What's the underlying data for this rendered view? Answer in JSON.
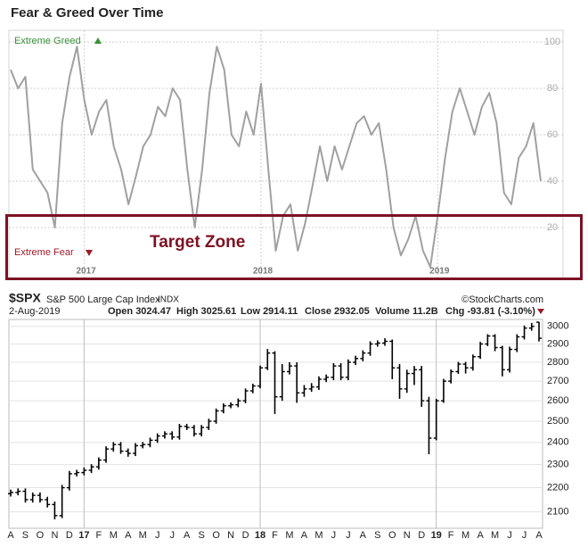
{
  "chart_data": [
    {
      "type": "line",
      "title": "Fear & Greed Over Time",
      "annotations": {
        "extreme_greed": "Extreme Greed",
        "extreme_fear": "Extreme Fear",
        "target_zone": "Target Zone"
      },
      "categories": [
        null,
        null,
        null,
        null,
        null,
        null,
        null,
        null,
        null,
        null,
        "2017",
        null,
        null,
        null,
        null,
        null,
        null,
        null,
        null,
        null,
        null,
        null,
        null,
        null,
        null,
        null,
        null,
        null,
        null,
        null,
        null,
        null,
        null,
        null,
        "2018",
        null,
        null,
        null,
        null,
        null,
        null,
        null,
        null,
        null,
        null,
        null,
        null,
        null,
        null,
        null,
        null,
        null,
        null,
        null,
        null,
        null,
        null,
        null,
        "2019",
        null,
        null,
        null,
        null,
        null,
        null,
        null,
        null,
        null,
        null,
        null,
        null,
        null,
        null
      ],
      "values": [
        88,
        80,
        85,
        45,
        40,
        35,
        20,
        65,
        85,
        98,
        75,
        60,
        70,
        75,
        55,
        45,
        30,
        42,
        55,
        60,
        72,
        68,
        80,
        75,
        45,
        20,
        45,
        78,
        98,
        88,
        60,
        55,
        70,
        60,
        82,
        45,
        10,
        25,
        30,
        10,
        22,
        38,
        55,
        40,
        55,
        45,
        55,
        65,
        68,
        60,
        65,
        45,
        20,
        8,
        15,
        25,
        10,
        3,
        25,
        50,
        70,
        80,
        70,
        60,
        72,
        78,
        65,
        35,
        30,
        50,
        55,
        65,
        40
      ],
      "color": "#a0a0a0",
      "ylim": [
        0,
        105
      ],
      "yticks": [
        20,
        40,
        60,
        80,
        100
      ],
      "grid": true
    },
    {
      "type": "ohlc",
      "symbol": "$SPX",
      "name": "S&P 500 Large Cap Index",
      "exchange": "INDX",
      "source": "©StockCharts.com",
      "date": "2-Aug-2019",
      "stats": [
        {
          "label": "Open",
          "value": "3024.47"
        },
        {
          "label": "High",
          "value": "3025.61"
        },
        {
          "label": "Low",
          "value": "2914.11"
        },
        {
          "label": "Close",
          "value": "2932.05"
        },
        {
          "label": "Volume",
          "value": "11.2B"
        },
        {
          "label": "Chg",
          "value": "-93.81 (-3.10%)"
        }
      ],
      "categories": [
        "A",
        null,
        "S",
        null,
        "O",
        null,
        "N",
        null,
        "D",
        null,
        "17",
        null,
        "F",
        null,
        "M",
        null,
        "A",
        null,
        "M",
        null,
        "J",
        null,
        "J",
        null,
        "A",
        null,
        "S",
        null,
        "O",
        null,
        "N",
        null,
        "D",
        null,
        "18",
        null,
        "F",
        null,
        "M",
        null,
        "A",
        null,
        "M",
        null,
        "J",
        null,
        "J",
        null,
        "A",
        null,
        "S",
        null,
        "O",
        null,
        "N",
        null,
        "D",
        null,
        "19",
        null,
        "F",
        null,
        "M",
        null,
        "A",
        null,
        "M",
        null,
        "J",
        null,
        "J",
        null,
        "A"
      ],
      "open": [
        2175,
        2180,
        2185,
        2150,
        2168,
        2150,
        2130,
        2085,
        2200,
        2260,
        2265,
        2275,
        2290,
        2320,
        2370,
        2390,
        2360,
        2350,
        2385,
        2390,
        2410,
        2430,
        2440,
        2425,
        2475,
        2470,
        2440,
        2470,
        2500,
        2550,
        2575,
        2580,
        2600,
        2650,
        2675,
        2770,
        2850,
        2620,
        2750,
        2780,
        2640,
        2660,
        2670,
        2710,
        2720,
        2780,
        2720,
        2800,
        2820,
        2850,
        2900,
        2905,
        2915,
        2770,
        2660,
        2740,
        2760,
        2600,
        2420,
        2600,
        2700,
        2750,
        2790,
        2770,
        2830,
        2900,
        2945,
        2880,
        2760,
        2870,
        2940,
        2990,
        3024
      ],
      "high": [
        2192,
        2197,
        2197,
        2180,
        2180,
        2162,
        2142,
        2212,
        2272,
        2277,
        2287,
        2302,
        2332,
        2382,
        2402,
        2402,
        2372,
        2397,
        2402,
        2422,
        2442,
        2452,
        2452,
        2487,
        2487,
        2482,
        2482,
        2512,
        2562,
        2587,
        2592,
        2612,
        2662,
        2687,
        2782,
        2872,
        2860,
        2790,
        2800,
        2800,
        2680,
        2690,
        2725,
        2735,
        2795,
        2795,
        2815,
        2835,
        2865,
        2915,
        2920,
        2932,
        2925,
        2790,
        2760,
        2780,
        2780,
        2620,
        2610,
        2712,
        2762,
        2802,
        2802,
        2842,
        2912,
        2955,
        2955,
        2890,
        2885,
        2955,
        3005,
        3020,
        3026
      ],
      "low": [
        2163,
        2168,
        2138,
        2138,
        2138,
        2118,
        2070,
        2075,
        2188,
        2248,
        2253,
        2263,
        2278,
        2308,
        2358,
        2348,
        2335,
        2338,
        2373,
        2378,
        2398,
        2418,
        2413,
        2413,
        2458,
        2428,
        2428,
        2458,
        2488,
        2538,
        2563,
        2568,
        2588,
        2638,
        2663,
        2758,
        2535,
        2600,
        2735,
        2590,
        2620,
        2645,
        2655,
        2695,
        2705,
        2705,
        2705,
        2785,
        2805,
        2835,
        2885,
        2890,
        2710,
        2610,
        2640,
        2680,
        2570,
        2346,
        2410,
        2590,
        2688,
        2738,
        2740,
        2755,
        2818,
        2888,
        2860,
        2725,
        2745,
        2855,
        2925,
        2975,
        2914
      ],
      "close": [
        2180,
        2185,
        2150,
        2168,
        2150,
        2130,
        2085,
        2200,
        2260,
        2265,
        2275,
        2290,
        2320,
        2370,
        2390,
        2360,
        2350,
        2385,
        2390,
        2410,
        2430,
        2440,
        2425,
        2475,
        2470,
        2440,
        2470,
        2500,
        2550,
        2575,
        2580,
        2600,
        2650,
        2675,
        2770,
        2850,
        2620,
        2750,
        2780,
        2640,
        2660,
        2670,
        2710,
        2720,
        2780,
        2720,
        2800,
        2820,
        2850,
        2900,
        2905,
        2915,
        2770,
        2660,
        2740,
        2760,
        2600,
        2420,
        2600,
        2700,
        2750,
        2790,
        2770,
        2830,
        2900,
        2945,
        2880,
        2760,
        2870,
        2940,
        2990,
        3000,
        2932
      ],
      "color": "#000000",
      "ylim": [
        2035,
        3040
      ],
      "log_scale": true,
      "yticks": [
        2100,
        2200,
        2300,
        2400,
        2500,
        2600,
        2700,
        2800,
        2900,
        3000
      ],
      "grid": true
    }
  ]
}
